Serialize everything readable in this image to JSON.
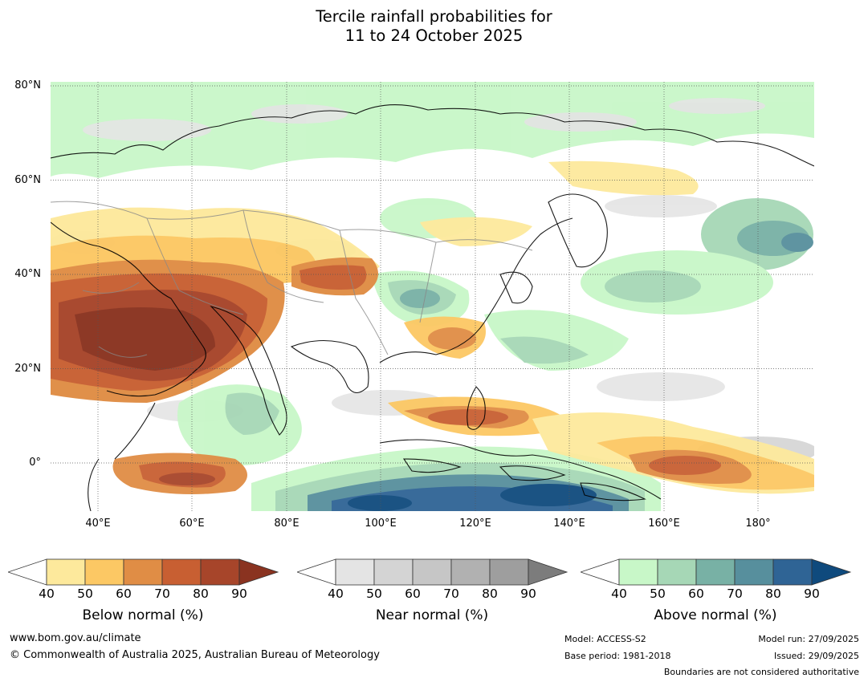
{
  "title": {
    "line1": "Tercile rainfall probabilities for",
    "line2": "11 to 24 October 2025"
  },
  "map": {
    "latitude_labels": [
      "80°N",
      "60°N",
      "40°N",
      "20°N",
      "0°"
    ],
    "longitude_labels": [
      "40°E",
      "60°E",
      "80°E",
      "100°E",
      "120°E",
      "140°E",
      "160°E",
      "180°"
    ]
  },
  "legends": {
    "below": {
      "title": "Below normal (%)",
      "ticks": [
        "40",
        "50",
        "60",
        "70",
        "80",
        "90"
      ],
      "colors": [
        "#ffffff",
        "#fde99c",
        "#fcc864",
        "#e08d45",
        "#c85f32",
        "#a7452a",
        "#8a3320"
      ]
    },
    "near": {
      "title": "Near normal (%)",
      "ticks": [
        "40",
        "50",
        "60",
        "70",
        "80",
        "90"
      ],
      "colors": [
        "#ffffff",
        "#e4e4e4",
        "#d4d4d4",
        "#c6c6c6",
        "#b1b1b1",
        "#9e9e9e",
        "#7c7c7c"
      ]
    },
    "above": {
      "title": "Above normal (%)",
      "ticks": [
        "40",
        "50",
        "60",
        "70",
        "80",
        "90"
      ],
      "colors": [
        "#ffffff",
        "#c8f7c8",
        "#a6d7b6",
        "#78b1a5",
        "#578f9d",
        "#2f6495",
        "#0f4a7d"
      ]
    }
  },
  "footer": {
    "website": "www.bom.gov.au/climate",
    "copyright": "© Commonwealth of Australia 2025, Australian Bureau of Meteorology",
    "model": "Model: ACCESS-S2",
    "base_period": "Base period: 1981-2018",
    "model_run": "Model run: 27/09/2025",
    "issued": "Issued: 29/09/2025",
    "boundaries_note": "Boundaries are not considered authoritative"
  }
}
